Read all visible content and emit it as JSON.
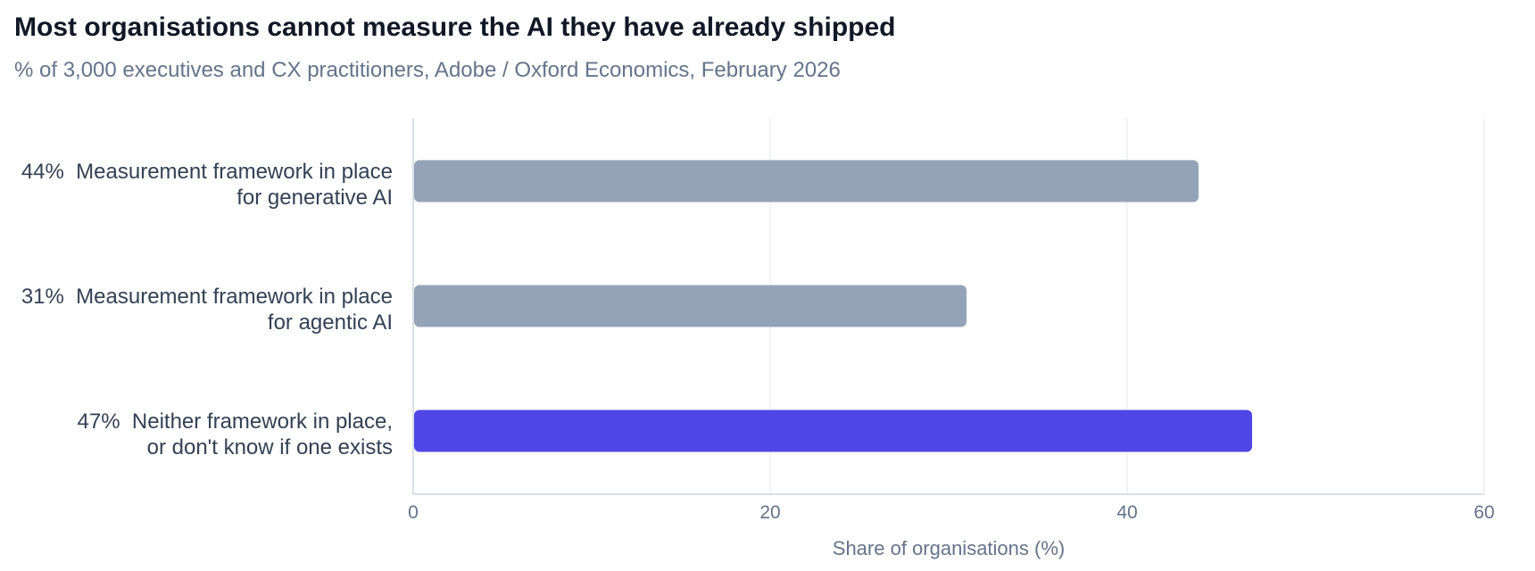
{
  "chart_data": {
    "type": "bar",
    "orientation": "horizontal",
    "title": "Most organisations cannot measure the AI they have already shipped",
    "subtitle": "% of 3,000 executives and CX practitioners, Adobe / Oxford Economics, February 2026",
    "xlabel": "Share of organisations (%)",
    "ylabel": "",
    "xlim": [
      0,
      60
    ],
    "xticks": [
      0,
      20,
      40,
      60
    ],
    "grid": true,
    "categories": [
      {
        "value_label": "44%",
        "lines": [
          "Measurement framework in place",
          "for generative AI"
        ]
      },
      {
        "value_label": "31%",
        "lines": [
          "Measurement framework in place",
          "for agentic AI"
        ]
      },
      {
        "value_label": "47%",
        "lines": [
          "Neither framework in place,",
          "or don't know if one exists"
        ]
      }
    ],
    "values": [
      44,
      31,
      47
    ],
    "colors": [
      "#94a3b8",
      "#94a3b8",
      "#4f46e5"
    ]
  }
}
